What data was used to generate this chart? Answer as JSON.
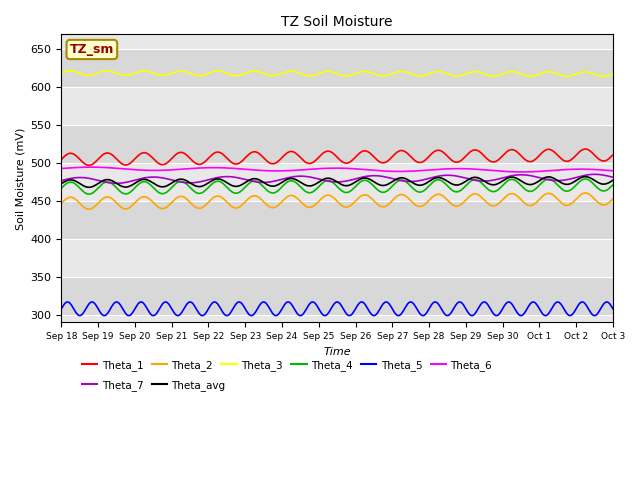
{
  "title": "TZ Soil Moisture",
  "xlabel": "Time",
  "ylabel": "Soil Moisture (mV)",
  "ylim": [
    290,
    670
  ],
  "yticks": [
    300,
    350,
    400,
    450,
    500,
    550,
    600,
    650
  ],
  "series": {
    "Theta_1": {
      "color": "#ff0000",
      "base": 505,
      "amp": 8,
      "freq_per_day": 1.0,
      "trend": 0.4
    },
    "Theta_2": {
      "color": "#ffa500",
      "base": 447,
      "amp": 8,
      "freq_per_day": 1.0,
      "trend": 0.4
    },
    "Theta_3": {
      "color": "#ffff00",
      "base": 619,
      "amp": 3,
      "freq_per_day": 1.0,
      "trend": -0.1
    },
    "Theta_4": {
      "color": "#00bb00",
      "base": 467,
      "amp": 8,
      "freq_per_day": 1.0,
      "trend": 0.3
    },
    "Theta_5": {
      "color": "#0000ff",
      "base": 308,
      "amp": 9,
      "freq_per_day": 1.5,
      "trend": 0.0
    },
    "Theta_6": {
      "color": "#ff00ff",
      "base": 493,
      "amp": 2,
      "freq_per_day": 0.3,
      "trend": -0.2
    },
    "Theta_7": {
      "color": "#aa00cc",
      "base": 477,
      "amp": 4,
      "freq_per_day": 0.5,
      "trend": 0.3
    },
    "Theta_avg": {
      "color": "#000000",
      "base": 473,
      "amp": 5,
      "freq_per_day": 1.0,
      "trend": 0.3
    }
  },
  "xtick_labels": [
    "Sep 18",
    "Sep 19",
    "Sep 20",
    "Sep 21",
    "Sep 22",
    "Sep 23",
    "Sep 24",
    "Sep 25",
    "Sep 26",
    "Sep 27",
    "Sep 28",
    "Sep 29",
    "Sep 30",
    "Oct 1",
    "Oct 2",
    "Oct 3"
  ],
  "bg_color": "#e8e8e8",
  "grid_color": "#ffffff",
  "legend_box_facecolor": "#ffffcc",
  "legend_box_edgecolor": "#aa8800",
  "legend_label": "TZ_sm",
  "legend_label_color": "#990000"
}
